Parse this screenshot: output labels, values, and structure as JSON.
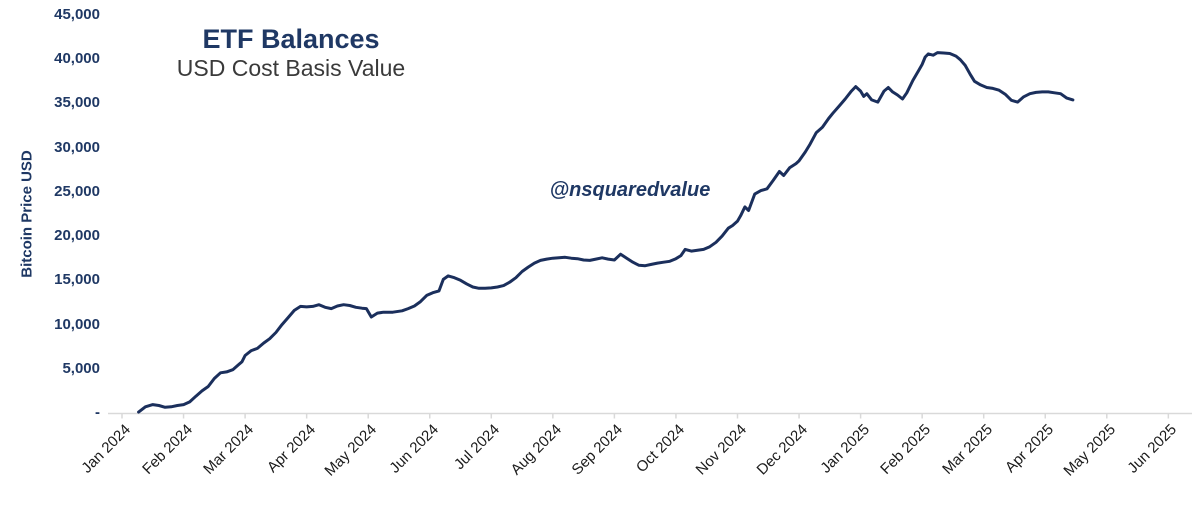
{
  "title": "ETF Balances",
  "subtitle": "USD Cost Basis Value",
  "watermark": "@nsquaredvalue",
  "colors": {
    "line": "#1b2f5c",
    "title": "#1f3864",
    "y_tick_text": "#1f3864",
    "x_tick_text": "#1b1b1b",
    "axis": "#d9d9d9"
  },
  "y_axis": {
    "label": "Bitcoin Price USD",
    "ticks": [
      "-",
      "5,000",
      "10,000",
      "15,000",
      "20,000",
      "25,000",
      "30,000",
      "35,000",
      "40,000",
      "45,000"
    ]
  },
  "x_axis": {
    "ticks": [
      "Jan 2024",
      "Feb 2024",
      "Mar 2024",
      "Apr 2024",
      "May 2024",
      "Jun 2024",
      "Jul 2024",
      "Aug 2024",
      "Sep 2024",
      "Oct 2024",
      "Nov 2024",
      "Dec 2024",
      "Jan 2025",
      "Feb 2025",
      "Mar 2025",
      "Apr 2025",
      "May 2025",
      "Jun 2025"
    ]
  },
  "chart_data": {
    "type": "line",
    "title": "ETF Balances",
    "subtitle": "USD Cost Basis Value",
    "xlabel": "",
    "ylabel": "Bitcoin Price USD",
    "ylim": [
      0,
      45000
    ],
    "y_tick_step": 5000,
    "grid": false,
    "legend": "none",
    "annotations": [
      "@nsquaredvalue"
    ],
    "x_unit": "months since Jan 2024 tick (0 = Jan 2024, 17 = Jun 2025)",
    "x_tick_labels": [
      "Jan 2024",
      "Feb 2024",
      "Mar 2024",
      "Apr 2024",
      "May 2024",
      "Jun 2024",
      "Jul 2024",
      "Aug 2024",
      "Sep 2024",
      "Oct 2024",
      "Nov 2024",
      "Dec 2024",
      "Jan 2025",
      "Feb 2025",
      "Mar 2025",
      "Apr 2025",
      "May 2025",
      "Jun 2025"
    ],
    "series": [
      {
        "name": "ETF Balances USD Cost Basis Value",
        "points": [
          [
            0.27,
            100
          ],
          [
            0.38,
            700
          ],
          [
            0.5,
            950
          ],
          [
            0.6,
            850
          ],
          [
            0.7,
            650
          ],
          [
            0.8,
            700
          ],
          [
            0.9,
            850
          ],
          [
            1.0,
            950
          ],
          [
            1.1,
            1250
          ],
          [
            1.2,
            1900
          ],
          [
            1.3,
            2500
          ],
          [
            1.4,
            3000
          ],
          [
            1.5,
            3900
          ],
          [
            1.6,
            4550
          ],
          [
            1.7,
            4650
          ],
          [
            1.8,
            4900
          ],
          [
            1.9,
            5500
          ],
          [
            1.95,
            5800
          ],
          [
            2.0,
            6500
          ],
          [
            2.1,
            7050
          ],
          [
            2.2,
            7300
          ],
          [
            2.3,
            7900
          ],
          [
            2.4,
            8400
          ],
          [
            2.5,
            9100
          ],
          [
            2.6,
            10000
          ],
          [
            2.7,
            10800
          ],
          [
            2.8,
            11600
          ],
          [
            2.9,
            12050
          ],
          [
            3.0,
            12000
          ],
          [
            3.1,
            12050
          ],
          [
            3.2,
            12250
          ],
          [
            3.3,
            11950
          ],
          [
            3.4,
            11800
          ],
          [
            3.5,
            12100
          ],
          [
            3.6,
            12250
          ],
          [
            3.7,
            12150
          ],
          [
            3.8,
            11950
          ],
          [
            3.9,
            11850
          ],
          [
            3.97,
            11800
          ],
          [
            4.05,
            10850
          ],
          [
            4.15,
            11300
          ],
          [
            4.25,
            11400
          ],
          [
            4.4,
            11400
          ],
          [
            4.55,
            11550
          ],
          [
            4.65,
            11800
          ],
          [
            4.75,
            12100
          ],
          [
            4.85,
            12600
          ],
          [
            4.95,
            13300
          ],
          [
            5.05,
            13600
          ],
          [
            5.15,
            13800
          ],
          [
            5.22,
            15100
          ],
          [
            5.3,
            15500
          ],
          [
            5.4,
            15300
          ],
          [
            5.5,
            15000
          ],
          [
            5.6,
            14600
          ],
          [
            5.7,
            14250
          ],
          [
            5.8,
            14100
          ],
          [
            5.9,
            14100
          ],
          [
            6.0,
            14150
          ],
          [
            6.1,
            14250
          ],
          [
            6.2,
            14400
          ],
          [
            6.3,
            14800
          ],
          [
            6.4,
            15300
          ],
          [
            6.5,
            16000
          ],
          [
            6.6,
            16500
          ],
          [
            6.7,
            16950
          ],
          [
            6.8,
            17250
          ],
          [
            6.9,
            17400
          ],
          [
            7.0,
            17500
          ],
          [
            7.1,
            17550
          ],
          [
            7.2,
            17600
          ],
          [
            7.3,
            17500
          ],
          [
            7.4,
            17450
          ],
          [
            7.5,
            17300
          ],
          [
            7.6,
            17250
          ],
          [
            7.7,
            17400
          ],
          [
            7.8,
            17550
          ],
          [
            7.9,
            17400
          ],
          [
            8.0,
            17300
          ],
          [
            8.1,
            17950
          ],
          [
            8.2,
            17500
          ],
          [
            8.3,
            17050
          ],
          [
            8.4,
            16700
          ],
          [
            8.5,
            16650
          ],
          [
            8.6,
            16800
          ],
          [
            8.7,
            16950
          ],
          [
            8.8,
            17050
          ],
          [
            8.9,
            17150
          ],
          [
            9.0,
            17450
          ],
          [
            9.08,
            17800
          ],
          [
            9.15,
            18500
          ],
          [
            9.25,
            18300
          ],
          [
            9.35,
            18400
          ],
          [
            9.45,
            18500
          ],
          [
            9.55,
            18800
          ],
          [
            9.65,
            19300
          ],
          [
            9.75,
            20000
          ],
          [
            9.85,
            20900
          ],
          [
            9.92,
            21200
          ],
          [
            10.0,
            21700
          ],
          [
            10.05,
            22300
          ],
          [
            10.12,
            23300
          ],
          [
            10.18,
            22900
          ],
          [
            10.28,
            24750
          ],
          [
            10.38,
            25150
          ],
          [
            10.48,
            25350
          ],
          [
            10.58,
            26300
          ],
          [
            10.68,
            27300
          ],
          [
            10.75,
            26850
          ],
          [
            10.85,
            27750
          ],
          [
            10.95,
            28200
          ],
          [
            11.0,
            28500
          ],
          [
            11.1,
            29500
          ],
          [
            11.18,
            30400
          ],
          [
            11.28,
            31700
          ],
          [
            11.38,
            32300
          ],
          [
            11.48,
            33300
          ],
          [
            11.55,
            33900
          ],
          [
            11.65,
            34700
          ],
          [
            11.75,
            35500
          ],
          [
            11.85,
            36400
          ],
          [
            11.92,
            36900
          ],
          [
            12.0,
            36400
          ],
          [
            12.05,
            35800
          ],
          [
            12.1,
            36100
          ],
          [
            12.18,
            35400
          ],
          [
            12.28,
            35150
          ],
          [
            12.38,
            36400
          ],
          [
            12.45,
            36800
          ],
          [
            12.52,
            36300
          ],
          [
            12.6,
            35950
          ],
          [
            12.68,
            35500
          ],
          [
            12.75,
            36200
          ],
          [
            12.85,
            37600
          ],
          [
            12.95,
            38800
          ],
          [
            13.0,
            39400
          ],
          [
            13.05,
            40250
          ],
          [
            13.1,
            40600
          ],
          [
            13.18,
            40450
          ],
          [
            13.25,
            40750
          ],
          [
            13.35,
            40700
          ],
          [
            13.45,
            40650
          ],
          [
            13.55,
            40350
          ],
          [
            13.62,
            39950
          ],
          [
            13.7,
            39300
          ],
          [
            13.78,
            38300
          ],
          [
            13.85,
            37500
          ],
          [
            13.95,
            37100
          ],
          [
            14.05,
            36800
          ],
          [
            14.15,
            36700
          ],
          [
            14.25,
            36500
          ],
          [
            14.35,
            36050
          ],
          [
            14.45,
            35350
          ],
          [
            14.55,
            35150
          ],
          [
            14.65,
            35750
          ],
          [
            14.75,
            36100
          ],
          [
            14.85,
            36250
          ],
          [
            14.95,
            36300
          ],
          [
            15.05,
            36300
          ],
          [
            15.15,
            36200
          ],
          [
            15.25,
            36100
          ],
          [
            15.35,
            35600
          ],
          [
            15.45,
            35400
          ]
        ]
      }
    ]
  }
}
